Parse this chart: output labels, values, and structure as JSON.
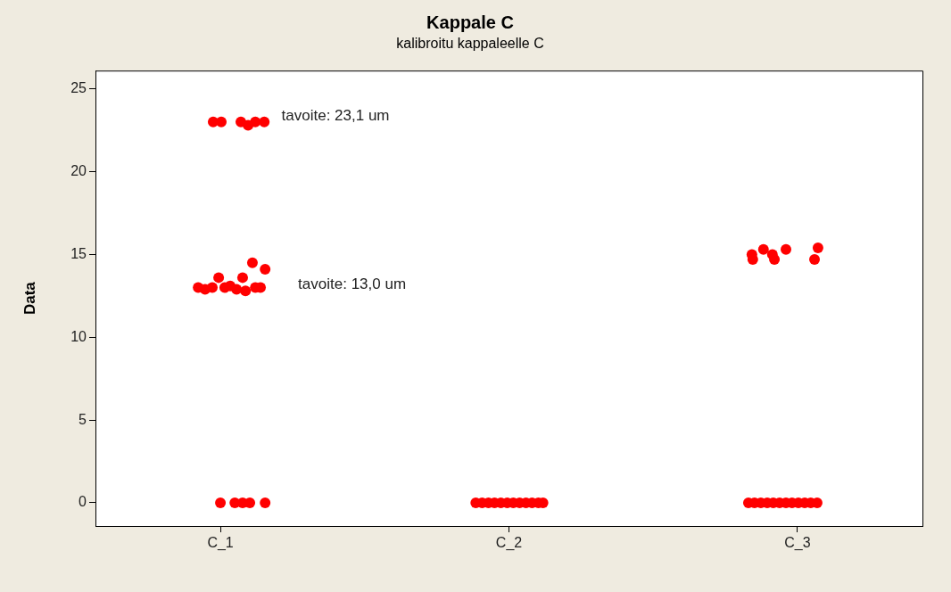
{
  "chart_data": {
    "type": "scatter",
    "title": "Kappale C",
    "subtitle": "kalibroitu kappaleelle C",
    "ylabel": "Data",
    "xlim": [
      0.567,
      3.433
    ],
    "xticks": [
      {
        "value": 1,
        "label": "C_1"
      },
      {
        "value": 2,
        "label": "C_2"
      },
      {
        "value": 3,
        "label": "C_3"
      }
    ],
    "ylim": [
      -1.4,
      26.1
    ],
    "yticks": [
      0,
      5,
      10,
      15,
      20,
      25
    ],
    "grid": false,
    "legend": false,
    "marker": "circle",
    "series": [
      {
        "color": "#ff0000",
        "x": [
          0.975,
          1.003,
          1.071,
          1.096,
          1.121,
          1.152,
          0.923,
          0.947,
          0.972,
          0.994,
          1.015,
          1.034,
          1.056,
          1.077,
          1.087,
          1.111,
          1.121,
          1.139,
          1.155,
          1.0,
          1.05,
          1.077,
          1.102,
          1.155,
          1.885,
          1.907,
          1.929,
          1.95,
          1.972,
          1.994,
          2.015,
          2.037,
          2.059,
          2.08,
          2.102,
          2.118,
          2.842,
          2.845,
          2.882,
          2.913,
          2.92,
          2.96,
          3.071,
          3.059,
          2.83,
          2.851,
          2.873,
          2.895,
          2.916,
          2.938,
          2.96,
          2.981,
          3.003,
          3.025,
          3.046,
          3.068
        ],
        "values": [
          23.0,
          23.0,
          23.0,
          22.8,
          23.0,
          23.0,
          13.0,
          12.9,
          13.0,
          13.6,
          13.0,
          13.1,
          12.9,
          13.6,
          12.8,
          14.5,
          13.0,
          13.0,
          14.1,
          0,
          0,
          0,
          0,
          0,
          0,
          0,
          0,
          0,
          0,
          0,
          0,
          0,
          0,
          0,
          0,
          0,
          15.0,
          14.7,
          15.3,
          15.0,
          14.7,
          15.3,
          15.4,
          14.7,
          0,
          0,
          0,
          0,
          0,
          0,
          0,
          0,
          0,
          0,
          0,
          0
        ]
      }
    ],
    "annotations": [
      "tavoite: 23,1 um",
      "tavoite: 13,0 um"
    ]
  }
}
